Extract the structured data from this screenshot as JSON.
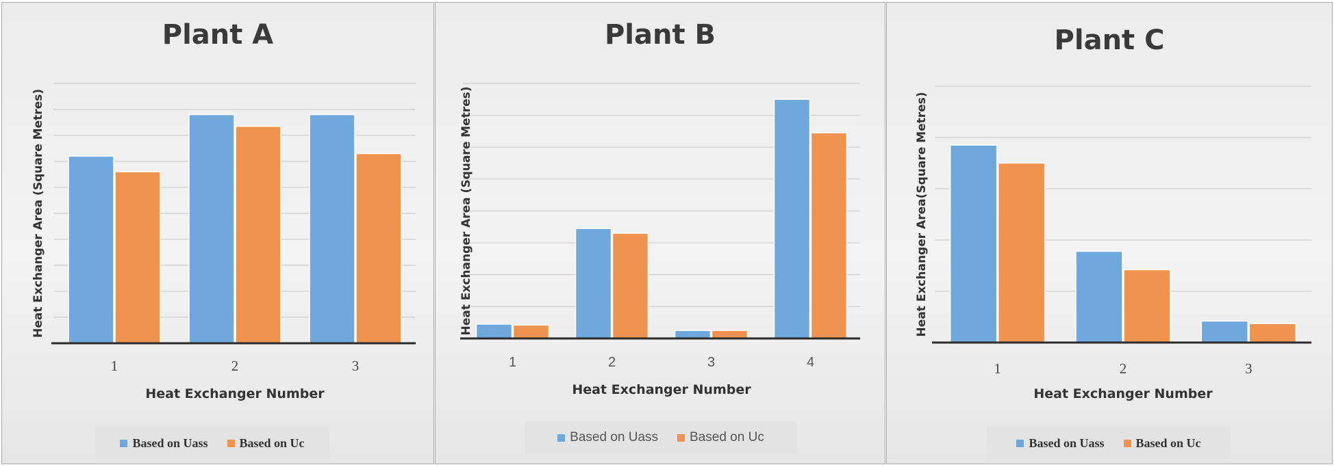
{
  "chart_data": [
    {
      "type": "bar",
      "title": "Plant A",
      "xlabel": "Heat Exchanger Number",
      "ylabel": "Heat Exchanger Area (Square Metres)",
      "categories": [
        "1",
        "2",
        "3"
      ],
      "ylim": [
        0,
        10
      ],
      "gridlines": 10,
      "series": [
        {
          "name": "Based on Uass",
          "values": [
            7.2,
            8.8,
            8.8
          ]
        },
        {
          "name": "Based on Uc",
          "values": [
            6.6,
            8.35,
            7.3
          ]
        }
      ],
      "legend": "bottom"
    },
    {
      "type": "bar",
      "title": "Plant B",
      "xlabel": "Heat Exchanger Number",
      "ylabel": "Heat Exchanger Area (Square Metres)",
      "categories": [
        "1",
        "2",
        "3",
        "4"
      ],
      "ylim": [
        0,
        8
      ],
      "gridlines": 8,
      "series": [
        {
          "name": "Based on Uass",
          "values": [
            0.45,
            3.45,
            0.25,
            7.5
          ]
        },
        {
          "name": "Based on Uc",
          "values": [
            0.42,
            3.3,
            0.25,
            6.45
          ]
        }
      ],
      "legend": "bottom"
    },
    {
      "type": "bar",
      "title": "Plant C",
      "xlabel": "Heat Exchanger Number",
      "ylabel": "Heat Exchanger Area(Square Metres)",
      "categories": [
        "1",
        "2",
        "3"
      ],
      "ylim": [
        0,
        5
      ],
      "gridlines": 5,
      "series": [
        {
          "name": "Based on Uass",
          "values": [
            3.85,
            1.78,
            0.42
          ]
        },
        {
          "name": "Based on Uc",
          "values": [
            3.5,
            1.42,
            0.37
          ]
        }
      ],
      "legend": "bottom"
    }
  ],
  "colors": {
    "uass": "#6fa8dc",
    "uc": "#f0934f",
    "grid": "#cfcfcf",
    "axis": "#2b2b2b"
  }
}
